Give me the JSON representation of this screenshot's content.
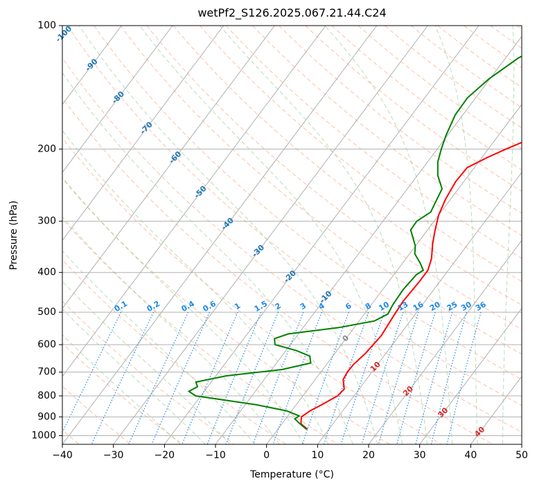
{
  "chart_data": {
    "type": "line",
    "title": "wetPf2_S126.2025.067.21.44.C24",
    "xlabel": "Temperature (°C)",
    "ylabel": "Pressure (hPa)",
    "xlim": [
      -40,
      50
    ],
    "ylim": [
      1050,
      100
    ],
    "y_scale": "log",
    "x_ticks": [
      -40,
      -30,
      -20,
      -10,
      0,
      10,
      20,
      30,
      40,
      50
    ],
    "y_ticks": [
      100,
      200,
      300,
      400,
      500,
      600,
      700,
      800,
      900,
      1000
    ],
    "grid": true,
    "skew": "skew-T log-P",
    "colors": {
      "temperature": "#ff0000",
      "dewpoint": "#008000",
      "isotherm_grid": "#b0b0b0",
      "dry_adiabat": "#ff7f50",
      "moist_adiabat": "#5fb35f",
      "mixing_ratio": "#1e88e5",
      "isotherm_label": "#1f77b4",
      "moist_label": "#d62728",
      "theta_e": "#d2b48c"
    },
    "series": [
      {
        "key": "temperature",
        "points": [
          [
            5.8,
            965
          ],
          [
            3.7,
            935
          ],
          [
            2.8,
            900
          ],
          [
            3.6,
            870
          ],
          [
            5,
            840
          ],
          [
            6.8,
            800
          ],
          [
            7.1,
            770
          ],
          [
            5.5,
            730
          ],
          [
            5.2,
            700
          ],
          [
            5.3,
            670
          ],
          [
            6,
            630
          ],
          [
            6.5,
            570
          ],
          [
            6,
            510
          ],
          [
            5.7,
            470
          ],
          [
            6,
            420
          ],
          [
            6,
            395
          ],
          [
            5,
            370
          ],
          [
            3,
            340
          ],
          [
            1.5,
            315
          ],
          [
            0,
            290
          ],
          [
            -1,
            265
          ],
          [
            -1.6,
            240
          ],
          [
            -1.4,
            222
          ],
          [
            1,
            210
          ],
          [
            3.5,
            200
          ],
          [
            7,
            188
          ],
          [
            12,
            174
          ],
          [
            16,
            164
          ],
          [
            20,
            155
          ],
          [
            22.6,
            145
          ],
          [
            24.5,
            137
          ],
          [
            27,
            128
          ],
          [
            30,
            119
          ],
          [
            33.5,
            111
          ],
          [
            35,
            107
          ],
          [
            35.8,
            104
          ],
          [
            36.2,
            100
          ]
        ]
      },
      {
        "key": "dewpoint",
        "points": [
          [
            5.6,
            965
          ],
          [
            3.5,
            935
          ],
          [
            1.8,
            910
          ],
          [
            2.2,
            895
          ],
          [
            -1,
            870
          ],
          [
            -8,
            840
          ],
          [
            -21,
            800
          ],
          [
            -23,
            780
          ],
          [
            -22,
            760
          ],
          [
            -23,
            740
          ],
          [
            -18,
            715
          ],
          [
            -8,
            690
          ],
          [
            -3.3,
            665
          ],
          [
            -4.5,
            640
          ],
          [
            -8,
            620
          ],
          [
            -13,
            600
          ],
          [
            -14,
            580
          ],
          [
            -12,
            565
          ],
          [
            -3,
            545
          ],
          [
            3,
            525
          ],
          [
            4.6,
            505
          ],
          [
            4.2,
            480
          ],
          [
            4,
            440
          ],
          [
            4.4,
            405
          ],
          [
            5.1,
            395
          ],
          [
            3.5,
            380
          ],
          [
            1,
            360
          ],
          [
            0,
            345
          ],
          [
            -1.6,
            330
          ],
          [
            -3.3,
            315
          ],
          [
            -3.4,
            300
          ],
          [
            -2,
            285
          ],
          [
            -2.5,
            270
          ],
          [
            -3.2,
            250
          ],
          [
            -6,
            232
          ],
          [
            -8,
            215
          ],
          [
            -9.2,
            200
          ],
          [
            -10.3,
            185
          ],
          [
            -11.5,
            165
          ],
          [
            -11.6,
            150
          ],
          [
            -10.2,
            135
          ],
          [
            -7.5,
            120
          ],
          [
            -4,
            110
          ],
          [
            -0.5,
            100
          ]
        ]
      }
    ],
    "isotherm_labels": [
      "-100",
      "-90",
      "-80",
      "-70",
      "-60",
      "-50",
      "-40",
      "-30",
      "-20",
      "-10",
      "0",
      "10",
      "20",
      "30",
      "40"
    ],
    "isotherm_label_values": [
      -100,
      -90,
      -80,
      -70,
      -60,
      -50,
      -40,
      -30,
      -20,
      -10,
      0,
      10,
      20,
      30,
      40
    ],
    "mixing_ratio_labels": [
      "0.1",
      "0.2",
      "0.4",
      "0.6",
      "1",
      "1.5",
      "2",
      "3",
      "4",
      "6",
      "8",
      "10",
      "13",
      "16",
      "20",
      "25",
      "30",
      "36"
    ],
    "mixing_ratio_values": [
      0.1,
      0.2,
      0.4,
      0.6,
      1,
      1.5,
      2,
      3,
      4,
      6,
      8,
      10,
      13,
      16,
      20,
      25,
      30,
      36
    ]
  }
}
